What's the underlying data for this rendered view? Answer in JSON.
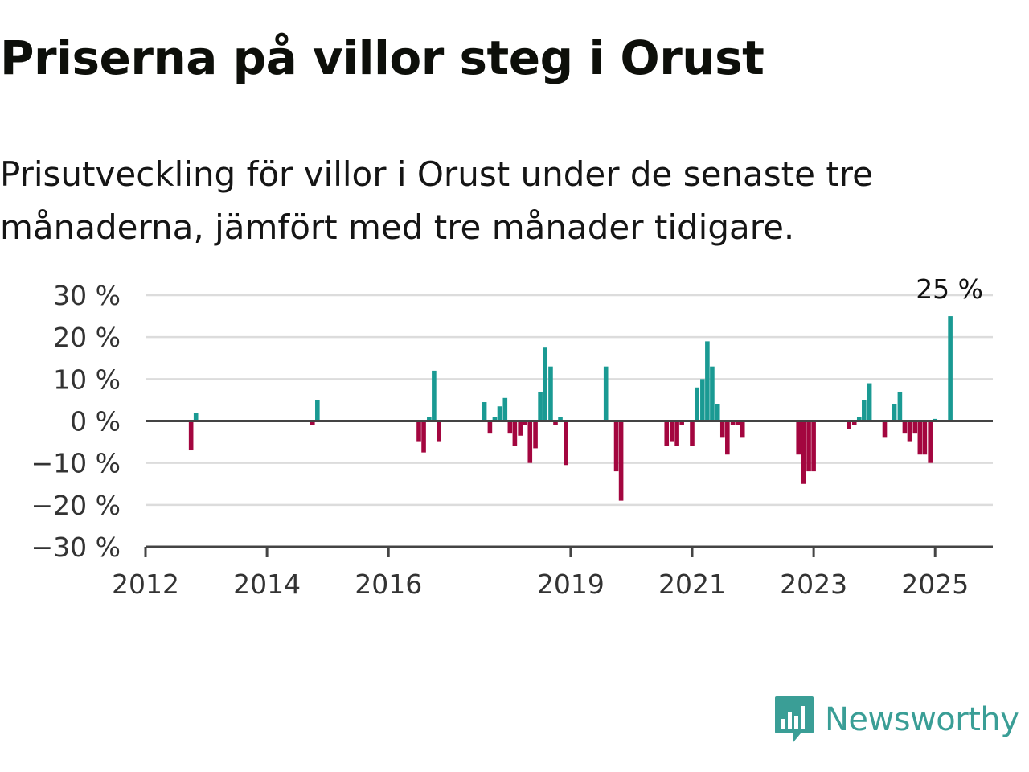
{
  "title": "Priserna på villor steg i Orust",
  "subtitle": "Prisutveckling för villor i Orust under de senaste tre månaderna, jämfört med tre månader tidigare.",
  "brand": "Newsworthy",
  "colors": {
    "positive": "#1a9a93",
    "negative": "#a3063f",
    "grid": "#dcdcdc",
    "axis": "#444444",
    "brand": "#3a9e96"
  },
  "chart_data": {
    "type": "bar",
    "title": "Priserna på villor steg i Orust",
    "xlabel": "",
    "ylabel": "",
    "ylim": [
      -30,
      30
    ],
    "xlim": [
      2012.0,
      2025.95
    ],
    "grid": true,
    "y_ticks": [
      "30 %",
      "20 %",
      "10 %",
      "0 %",
      "−10 %",
      "−20 %",
      "−30 %"
    ],
    "y_tick_values": [
      30,
      20,
      10,
      0,
      -10,
      -20,
      -30
    ],
    "x_ticks": [
      "2012",
      "2014",
      "2016",
      "2019",
      "2021",
      "2023",
      "2025"
    ],
    "x_tick_values": [
      2012,
      2014,
      2016,
      2019,
      2021,
      2023,
      2025
    ],
    "annotation": {
      "text": "25 %",
      "x": 2025.25,
      "y": 25
    },
    "x": [
      2012.75,
      2012.83,
      2014.75,
      2014.83,
      2016.5,
      2016.58,
      2016.67,
      2016.75,
      2016.83,
      2017.58,
      2017.67,
      2017.75,
      2017.83,
      2017.92,
      2018.0,
      2018.08,
      2018.17,
      2018.25,
      2018.33,
      2018.42,
      2018.5,
      2018.58,
      2018.67,
      2018.75,
      2018.83,
      2018.92,
      2019.0,
      2019.58,
      2019.75,
      2019.83,
      2020.58,
      2020.67,
      2020.75,
      2020.83,
      2021.0,
      2021.08,
      2021.17,
      2021.25,
      2021.33,
      2021.42,
      2021.5,
      2021.58,
      2021.67,
      2021.75,
      2021.83,
      2022.75,
      2022.83,
      2022.92,
      2023.0,
      2023.58,
      2023.67,
      2023.75,
      2023.83,
      2023.92,
      2024.17,
      2024.33,
      2024.42,
      2024.5,
      2024.58,
      2024.67,
      2024.75,
      2024.83,
      2024.92,
      2025.0,
      2025.25
    ],
    "values": [
      -7,
      2,
      -1,
      5,
      -5,
      -7.5,
      1,
      12,
      -5,
      4.5,
      -3,
      1,
      3.5,
      5.5,
      -3,
      -6,
      -3.5,
      -1,
      -10,
      -6.5,
      7,
      17.5,
      13,
      -1,
      1,
      -10.5,
      0,
      13,
      -12,
      -19,
      -6,
      -5,
      -6,
      -1,
      -6,
      8,
      10,
      19,
      13,
      4,
      -4,
      -8,
      -1,
      -1,
      -4,
      -8,
      -15,
      -12,
      -12,
      -2,
      -1,
      1,
      5,
      9,
      -4,
      4,
      7,
      -3,
      -5,
      -3,
      -8,
      -8,
      -10,
      0.5,
      25
    ]
  }
}
